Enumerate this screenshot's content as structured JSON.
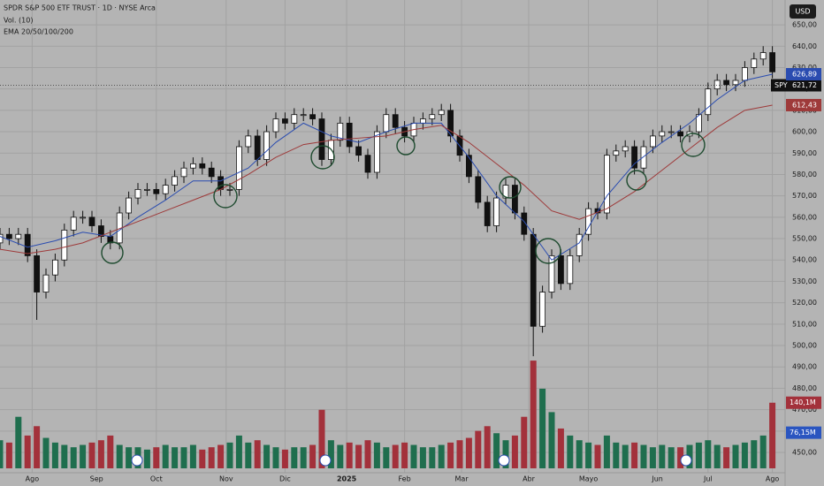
{
  "chart_data": {
    "type": "candlestick",
    "title": "SPDR S&P 500 ETF TRUST · 1D · NYSE Arca",
    "volume_label": "Vol. (10)",
    "ema_label": "EMA 20/50/100/200",
    "currency": "USD",
    "grid": true,
    "xlim": [
      0,
      85
    ],
    "xticks": [
      {
        "value": 3.5,
        "label": "Ago"
      },
      {
        "value": 10.5,
        "label": "Sep"
      },
      {
        "value": 17,
        "label": "Oct"
      },
      {
        "value": 24.6,
        "label": "Nov"
      },
      {
        "value": 31,
        "label": "Dic"
      },
      {
        "value": 37.7,
        "label": "2025"
      },
      {
        "value": 44,
        "label": "Feb"
      },
      {
        "value": 50.2,
        "label": "Mar"
      },
      {
        "value": 57.5,
        "label": "Abr"
      },
      {
        "value": 64,
        "label": "Mayo"
      },
      {
        "value": 71.5,
        "label": "Jun"
      },
      {
        "value": 77,
        "label": "Jul"
      },
      {
        "value": 84,
        "label": "Ago"
      }
    ],
    "ylim": [
      440.5,
      661.6
    ],
    "yticks": [
      {
        "value": 450,
        "label": "450,00"
      },
      {
        "value": 460,
        "label": "460,00"
      },
      {
        "value": 470,
        "label": "470,00"
      },
      {
        "value": 480,
        "label": "480,00"
      },
      {
        "value": 490,
        "label": "490,00"
      },
      {
        "value": 500,
        "label": "500,00"
      },
      {
        "value": 510,
        "label": "510,00"
      },
      {
        "value": 520,
        "label": "520,00"
      },
      {
        "value": 530,
        "label": "530,00"
      },
      {
        "value": 540,
        "label": "540,00"
      },
      {
        "value": 550,
        "label": "550,00"
      },
      {
        "value": 560,
        "label": "560,00"
      },
      {
        "value": 570,
        "label": "570,00"
      },
      {
        "value": 580,
        "label": "580,00"
      },
      {
        "value": 590,
        "label": "590,00"
      },
      {
        "value": 600,
        "label": "600,00"
      },
      {
        "value": 610,
        "label": "610,00"
      },
      {
        "value": 620,
        "label": "620,00"
      },
      {
        "value": 630,
        "label": "630,00"
      },
      {
        "value": 640,
        "label": "640,00"
      },
      {
        "value": 650,
        "label": "650,00"
      }
    ],
    "up_color": "#ffffff",
    "down_color": "#111111",
    "open": [
      548,
      552,
      550,
      552,
      542,
      525,
      533,
      540,
      554,
      560,
      560,
      556,
      551,
      548,
      562,
      569,
      573,
      573,
      571,
      575,
      579,
      583,
      585,
      583,
      579,
      573,
      573,
      593,
      598,
      587,
      600,
      606,
      604,
      608,
      608,
      606,
      587,
      596,
      604,
      593,
      589,
      581,
      600,
      608,
      602,
      598,
      604,
      606,
      608,
      610,
      598,
      589,
      579,
      567,
      556,
      569,
      575,
      562,
      552,
      509,
      525,
      542,
      529,
      542,
      552,
      564,
      562,
      589,
      591,
      593,
      583,
      593,
      598,
      600,
      600,
      598,
      600,
      608,
      620,
      624,
      622,
      624,
      630,
      634,
      637
    ],
    "high": [
      555,
      555,
      555,
      555,
      545,
      536,
      543,
      557,
      563,
      563,
      563,
      559,
      554,
      565,
      572,
      576,
      576,
      576,
      578,
      582,
      586,
      588,
      588,
      586,
      582,
      576,
      596,
      601,
      601,
      603,
      609,
      609,
      611,
      611,
      611,
      609,
      599,
      607,
      607,
      596,
      592,
      603,
      611,
      611,
      605,
      607,
      609,
      611,
      613,
      613,
      601,
      592,
      582,
      570,
      572,
      578,
      578,
      565,
      555,
      528,
      545,
      545,
      545,
      555,
      567,
      567,
      592,
      594,
      596,
      596,
      596,
      601,
      603,
      603,
      603,
      603,
      611,
      623,
      627,
      627,
      627,
      633,
      637,
      640,
      640
    ],
    "low": [
      545,
      547,
      547,
      539,
      512,
      522,
      530,
      537,
      551,
      557,
      553,
      548,
      545,
      545,
      559,
      566,
      570,
      568,
      568,
      572,
      576,
      580,
      580,
      576,
      570,
      570,
      570,
      590,
      584,
      584,
      597,
      601,
      601,
      605,
      603,
      584,
      584,
      593,
      590,
      586,
      578,
      578,
      597,
      599,
      595,
      595,
      601,
      603,
      605,
      595,
      586,
      576,
      564,
      553,
      553,
      566,
      559,
      549,
      495,
      506,
      522,
      526,
      526,
      539,
      549,
      559,
      559,
      586,
      588,
      580,
      580,
      590,
      595,
      597,
      595,
      595,
      597,
      605,
      617,
      619,
      619,
      621,
      627,
      631,
      625
    ],
    "close": [
      552,
      550,
      552,
      542,
      525,
      533,
      540,
      554,
      560,
      560,
      556,
      551,
      548,
      562,
      569,
      573,
      573,
      571,
      575,
      579,
      583,
      585,
      583,
      579,
      573,
      573,
      593,
      598,
      587,
      600,
      606,
      604,
      608,
      608,
      606,
      587,
      596,
      604,
      593,
      589,
      581,
      600,
      608,
      602,
      598,
      604,
      606,
      608,
      610,
      598,
      589,
      579,
      567,
      556,
      569,
      575,
      562,
      552,
      509,
      525,
      542,
      529,
      542,
      552,
      564,
      562,
      589,
      591,
      593,
      583,
      593,
      598,
      600,
      600,
      598,
      600,
      608,
      620,
      624,
      622,
      624,
      630,
      634,
      637,
      628
    ],
    "volume": {
      "values": [
        60,
        55,
        110,
        70,
        90,
        65,
        55,
        50,
        45,
        50,
        55,
        60,
        70,
        50,
        45,
        45,
        40,
        45,
        50,
        45,
        45,
        50,
        40,
        45,
        50,
        55,
        70,
        55,
        60,
        50,
        45,
        40,
        45,
        45,
        50,
        125,
        60,
        50,
        55,
        50,
        60,
        55,
        45,
        50,
        55,
        50,
        45,
        45,
        50,
        55,
        60,
        65,
        80,
        90,
        75,
        60,
        70,
        110,
        230,
        170,
        120,
        85,
        70,
        60,
        55,
        50,
        70,
        55,
        50,
        55,
        50,
        45,
        50,
        45,
        45,
        50,
        55,
        60,
        50,
        45,
        50,
        55,
        60,
        70,
        140.1
      ],
      "up_color": "#1f6e4e",
      "down_color": "#a3313b",
      "last_label": {
        "value": 140.1,
        "label": "140,1M"
      },
      "ma": {
        "value": 76.15,
        "label": "76,15M",
        "color": "#2a55c0"
      }
    },
    "ema": [
      {
        "color": "#2a4cb0",
        "x": [
          0,
          3,
          6,
          9,
          12,
          15,
          18,
          21,
          24,
          27,
          30,
          33,
          36,
          39,
          42,
          45,
          48,
          51,
          54,
          57,
          60,
          63,
          66,
          69,
          72,
          75,
          78,
          81,
          84
        ],
        "values": [
          551,
          546,
          549,
          553,
          551,
          560,
          568,
          577,
          577,
          583,
          595,
          604,
          598,
          595,
          600,
          604,
          604,
          588,
          570,
          558,
          540,
          548,
          570,
          585,
          595,
          604,
          615,
          624,
          626.89
        ],
        "last_label": {
          "value": 626.89,
          "label": "626,89"
        }
      },
      {
        "color": "#9e3a3a",
        "x": [
          0,
          3,
          6,
          9,
          12,
          15,
          18,
          21,
          24,
          27,
          30,
          33,
          36,
          39,
          42,
          45,
          48,
          51,
          54,
          57,
          60,
          63,
          66,
          69,
          72,
          75,
          78,
          81,
          84
        ],
        "values": [
          545,
          543,
          545,
          548,
          553,
          558,
          563,
          568,
          573,
          580,
          588,
          594,
          596,
          597,
          598,
          601,
          603,
          595,
          585,
          575,
          563,
          559,
          564,
          572,
          582,
          592,
          602,
          610,
          612.43
        ],
        "last_label": {
          "value": 612.43,
          "label": "612,43"
        }
      }
    ],
    "last_price": {
      "name": "SPY",
      "value": 621.72,
      "label": "621,72"
    }
  }
}
